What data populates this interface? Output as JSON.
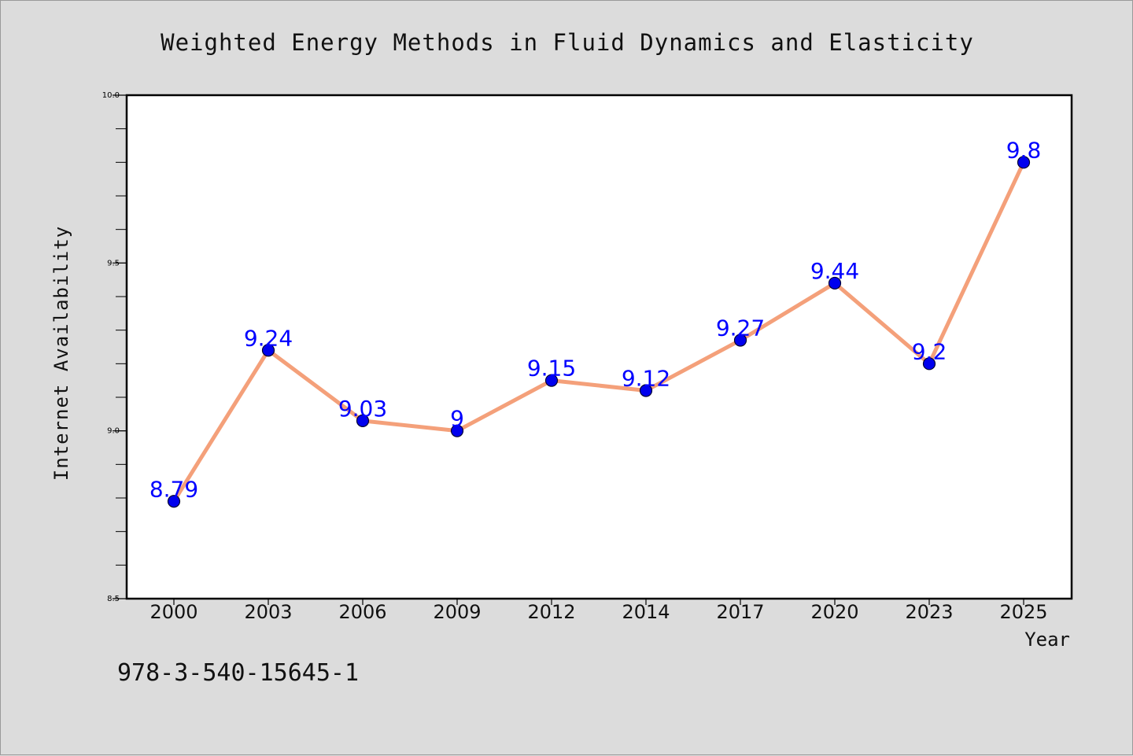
{
  "chart_data": {
    "type": "line",
    "title": "Weighted Energy Methods in Fluid Dynamics and Elasticity",
    "xlabel": "Year",
    "ylabel": "Internet Availability",
    "categories": [
      "2000",
      "2003",
      "2006",
      "2009",
      "2012",
      "2014",
      "2017",
      "2020",
      "2023",
      "2025"
    ],
    "values": [
      8.79,
      9.24,
      9.03,
      9.0,
      9.15,
      9.12,
      9.27,
      9.44,
      9.2,
      9.8
    ],
    "data_labels": [
      "8.79",
      "9.24",
      "9.03",
      "9",
      "9.15",
      "9.12",
      "9.27",
      "9.44",
      "9.2",
      "9.8"
    ],
    "ylim": [
      8.5,
      10.0
    ],
    "y_ticks": [
      "8.5",
      "9.0",
      "9.5",
      "10.0"
    ],
    "y_tick_values": [
      8.5,
      9.0,
      9.5,
      10.0
    ],
    "y_minor_step": 0.1,
    "grid": false,
    "legend": "none",
    "colors": {
      "line": "#f4a07a",
      "marker": "#0000ee",
      "marker_edge": "#000033",
      "data_label": "#0000ff",
      "background": "#dcdcdc",
      "plot_background": "#ffffff"
    }
  },
  "footer": {
    "isbn": "978-3-540-15645-1"
  }
}
